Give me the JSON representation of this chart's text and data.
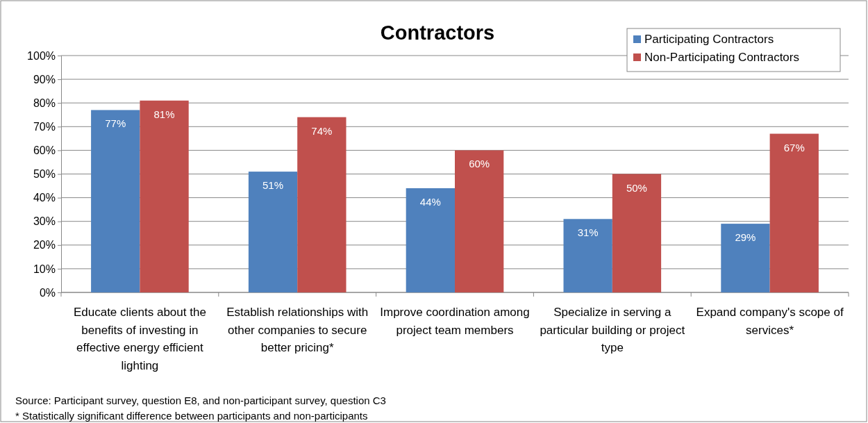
{
  "chart_data": {
    "type": "bar",
    "title": "Contractors",
    "categories": [
      "Educate clients about the benefits of investing in effective energy efficient lighting",
      "Establish relationships with other companies to secure better pricing*",
      "Improve coordination among project team members",
      "Specialize in serving a particular building or project type",
      "Expand company's scope of services*"
    ],
    "series": [
      {
        "name": "Participating Contractors",
        "color": "#4f81bd",
        "values": [
          77,
          51,
          44,
          31,
          29
        ],
        "value_labels": [
          "77%",
          "51%",
          "44%",
          "31%",
          "29%"
        ]
      },
      {
        "name": "Non-Participating Contractors",
        "color": "#c0504d",
        "values": [
          81,
          74,
          60,
          50,
          67
        ],
        "value_labels": [
          "81%",
          "74%",
          "60%",
          "50%",
          "67%"
        ]
      }
    ],
    "ylim": [
      0,
      100
    ],
    "yticks": [
      {
        "value": 0,
        "label": "0%"
      },
      {
        "value": 10,
        "label": "10%"
      },
      {
        "value": 20,
        "label": "20%"
      },
      {
        "value": 30,
        "label": "30%"
      },
      {
        "value": 40,
        "label": "40%"
      },
      {
        "value": 50,
        "label": "50%"
      },
      {
        "value": 60,
        "label": "60%"
      },
      {
        "value": 70,
        "label": "70%"
      },
      {
        "value": 80,
        "label": "80%"
      },
      {
        "value": 90,
        "label": "90%"
      },
      {
        "value": 100,
        "label": "100%"
      }
    ],
    "grid": "y",
    "legend": "top right",
    "annotations": [
      "Source: Participant  survey, question E8, and non-participant survey, question C3",
      "* Statistically significant difference between participants and non-participants"
    ]
  }
}
